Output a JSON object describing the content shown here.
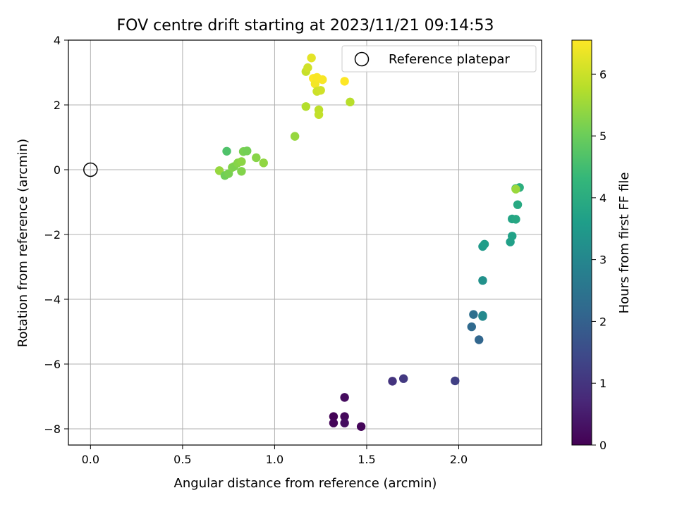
{
  "chart_data": {
    "type": "scatter",
    "title": "FOV centre drift starting at 2023/11/21 09:14:53",
    "xlabel": "Angular distance from reference (arcmin)",
    "ylabel": "Rotation from reference (arcmin)",
    "xlim": [
      -0.12,
      2.45
    ],
    "ylim": [
      -8.5,
      4.0
    ],
    "xticks": [
      0.0,
      0.5,
      1.0,
      1.5,
      2.0
    ],
    "xtick_labels": [
      "0.0",
      "0.5",
      "1.0",
      "1.5",
      "2.0"
    ],
    "yticks": [
      -8,
      -6,
      -4,
      -2,
      0,
      2,
      4
    ],
    "ytick_labels": [
      "−8",
      "−6",
      "−4",
      "−2",
      "0",
      "2",
      "4"
    ],
    "grid": true,
    "legend": {
      "placement": "top-right",
      "entries": [
        "Reference platepar"
      ]
    },
    "reference_point": {
      "x": 0.0,
      "y": 0.0,
      "label": "Reference platepar",
      "marker": "hollow-circle"
    },
    "colorbar": {
      "label": "Hours from first FF file",
      "range": [
        0.0,
        6.55
      ],
      "ticks": [
        0,
        1,
        2,
        3,
        4,
        5,
        6
      ],
      "tick_labels": [
        "0",
        "1",
        "2",
        "3",
        "4",
        "5",
        "6"
      ],
      "colormap": "viridis",
      "colors": [
        "#440154",
        "#482878",
        "#3e4989",
        "#31688e",
        "#26828e",
        "#1f9e89",
        "#35b779",
        "#6ece58",
        "#b5de2b",
        "#fde725"
      ]
    },
    "series": [
      {
        "color_value_unit": "hours",
        "points": [
          {
            "x": 1.32,
            "y": -7.62,
            "t": 0.05
          },
          {
            "x": 1.32,
            "y": -7.82,
            "t": 0.1
          },
          {
            "x": 1.38,
            "y": -7.03,
            "t": 0.2
          },
          {
            "x": 1.38,
            "y": -7.62,
            "t": 0.15
          },
          {
            "x": 1.38,
            "y": -7.82,
            "t": 0.25
          },
          {
            "x": 1.47,
            "y": -7.93,
            "t": 0.1
          },
          {
            "x": 1.64,
            "y": -6.53,
            "t": 1.0
          },
          {
            "x": 1.7,
            "y": -6.45,
            "t": 1.1
          },
          {
            "x": 1.98,
            "y": -6.52,
            "t": 1.25
          },
          {
            "x": 2.07,
            "y": -4.85,
            "t": 2.25
          },
          {
            "x": 2.08,
            "y": -4.47,
            "t": 2.4
          },
          {
            "x": 2.11,
            "y": -5.25,
            "t": 2.15
          },
          {
            "x": 2.13,
            "y": -4.5,
            "t": 3.0
          },
          {
            "x": 2.13,
            "y": -4.53,
            "t": 3.1
          },
          {
            "x": 2.13,
            "y": -3.42,
            "t": 3.3
          },
          {
            "x": 2.13,
            "y": -2.37,
            "t": 3.5
          },
          {
            "x": 2.14,
            "y": -2.3,
            "t": 3.6
          },
          {
            "x": 2.28,
            "y": -2.23,
            "t": 3.7
          },
          {
            "x": 2.29,
            "y": -1.52,
            "t": 3.8
          },
          {
            "x": 2.29,
            "y": -2.05,
            "t": 3.75
          },
          {
            "x": 2.31,
            "y": -1.53,
            "t": 3.9
          },
          {
            "x": 2.32,
            "y": -1.08,
            "t": 3.95
          },
          {
            "x": 2.31,
            "y": -0.58,
            "t": 4.0
          },
          {
            "x": 2.33,
            "y": -0.55,
            "t": 4.1
          },
          {
            "x": 2.31,
            "y": -0.6,
            "t": 5.55
          },
          {
            "x": 0.7,
            "y": -0.03,
            "t": 5.5
          },
          {
            "x": 0.73,
            "y": -0.18,
            "t": 5.1
          },
          {
            "x": 0.74,
            "y": 0.57,
            "t": 4.7
          },
          {
            "x": 0.75,
            "y": -0.12,
            "t": 5.2
          },
          {
            "x": 0.77,
            "y": 0.07,
            "t": 5.3
          },
          {
            "x": 0.78,
            "y": 0.1,
            "t": 5.25
          },
          {
            "x": 0.8,
            "y": 0.21,
            "t": 5.35
          },
          {
            "x": 0.82,
            "y": -0.05,
            "t": 5.3
          },
          {
            "x": 0.82,
            "y": 0.25,
            "t": 5.4
          },
          {
            "x": 0.83,
            "y": 0.56,
            "t": 5.2
          },
          {
            "x": 0.85,
            "y": 0.58,
            "t": 5.15
          },
          {
            "x": 0.9,
            "y": 0.37,
            "t": 5.35
          },
          {
            "x": 0.94,
            "y": 0.21,
            "t": 5.45
          },
          {
            "x": 1.11,
            "y": 1.03,
            "t": 5.5
          },
          {
            "x": 1.17,
            "y": 1.95,
            "t": 5.8
          },
          {
            "x": 1.17,
            "y": 3.03,
            "t": 6.0
          },
          {
            "x": 1.18,
            "y": 3.15,
            "t": 6.1
          },
          {
            "x": 1.2,
            "y": 3.45,
            "t": 6.3
          },
          {
            "x": 1.21,
            "y": 2.82,
            "t": 6.55
          },
          {
            "x": 1.22,
            "y": 2.65,
            "t": 6.45
          },
          {
            "x": 1.23,
            "y": 2.85,
            "t": 6.5
          },
          {
            "x": 1.23,
            "y": 2.42,
            "t": 6.05
          },
          {
            "x": 1.24,
            "y": 1.85,
            "t": 5.9
          },
          {
            "x": 1.24,
            "y": 1.7,
            "t": 5.95
          },
          {
            "x": 1.25,
            "y": 2.45,
            "t": 6.1
          },
          {
            "x": 1.26,
            "y": 2.78,
            "t": 6.5
          },
          {
            "x": 1.38,
            "y": 2.73,
            "t": 6.55
          },
          {
            "x": 1.41,
            "y": 2.09,
            "t": 5.85
          }
        ]
      }
    ]
  }
}
